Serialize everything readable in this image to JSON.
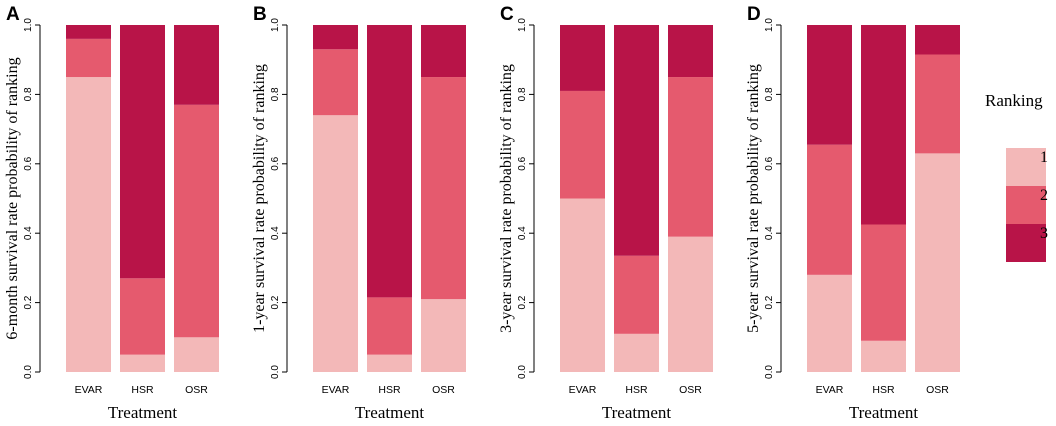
{
  "colors": {
    "rank1": "#F3B8B8",
    "rank2": "#E55A6E",
    "rank3": "#B81448"
  },
  "legend": {
    "title": "Ranking",
    "items": [
      {
        "label": "1",
        "color": "#F3B8B8"
      },
      {
        "label": "2",
        "color": "#E55A6E"
      },
      {
        "label": "3",
        "color": "#B81448"
      }
    ]
  },
  "chart_data": [
    {
      "type": "bar",
      "stacked": true,
      "panel": "A",
      "ylabel": "6-month survival rate probability of ranking",
      "xlabel": "Treatment",
      "categories": [
        "EVAR",
        "HSR",
        "OSR"
      ],
      "ylim": [
        0,
        1
      ],
      "yticks": [
        "0.0",
        "0.2",
        "0.4",
        "0.6",
        "0.8",
        "1.0"
      ],
      "series": [
        {
          "name": "1",
          "values": [
            0.85,
            0.05,
            0.1
          ]
        },
        {
          "name": "2",
          "values": [
            0.11,
            0.22,
            0.67
          ]
        },
        {
          "name": "3",
          "values": [
            0.04,
            0.73,
            0.23
          ]
        }
      ]
    },
    {
      "type": "bar",
      "stacked": true,
      "panel": "B",
      "ylabel": "1-year survival rate probability of ranking",
      "xlabel": "Treatment",
      "categories": [
        "EVAR",
        "HSR",
        "OSR"
      ],
      "ylim": [
        0,
        1
      ],
      "yticks": [
        "0.0",
        "0.2",
        "0.4",
        "0.6",
        "0.8",
        "1.0"
      ],
      "series": [
        {
          "name": "1",
          "values": [
            0.74,
            0.05,
            0.21
          ]
        },
        {
          "name": "2",
          "values": [
            0.19,
            0.165,
            0.64
          ]
        },
        {
          "name": "3",
          "values": [
            0.07,
            0.785,
            0.15
          ]
        }
      ]
    },
    {
      "type": "bar",
      "stacked": true,
      "panel": "C",
      "ylabel": "3-year survival rate probability of ranking",
      "xlabel": "Treatment",
      "categories": [
        "EVAR",
        "HSR",
        "OSR"
      ],
      "ylim": [
        0,
        1
      ],
      "yticks": [
        "0.0",
        "0.2",
        "0.4",
        "0.6",
        "0.8",
        "1.0"
      ],
      "series": [
        {
          "name": "1",
          "values": [
            0.5,
            0.11,
            0.39
          ]
        },
        {
          "name": "2",
          "values": [
            0.31,
            0.225,
            0.46
          ]
        },
        {
          "name": "3",
          "values": [
            0.19,
            0.665,
            0.15
          ]
        }
      ]
    },
    {
      "type": "bar",
      "stacked": true,
      "panel": "D",
      "ylabel": "5-year survival rate probability of ranking",
      "xlabel": "Treatment",
      "categories": [
        "EVAR",
        "HSR",
        "OSR"
      ],
      "ylim": [
        0,
        1
      ],
      "yticks": [
        "0.0",
        "0.2",
        "0.4",
        "0.6",
        "0.8",
        "1.0"
      ],
      "series": [
        {
          "name": "1",
          "values": [
            0.28,
            0.09,
            0.63
          ]
        },
        {
          "name": "2",
          "values": [
            0.375,
            0.335,
            0.285
          ]
        },
        {
          "name": "3",
          "values": [
            0.345,
            0.575,
            0.085
          ]
        }
      ]
    }
  ]
}
